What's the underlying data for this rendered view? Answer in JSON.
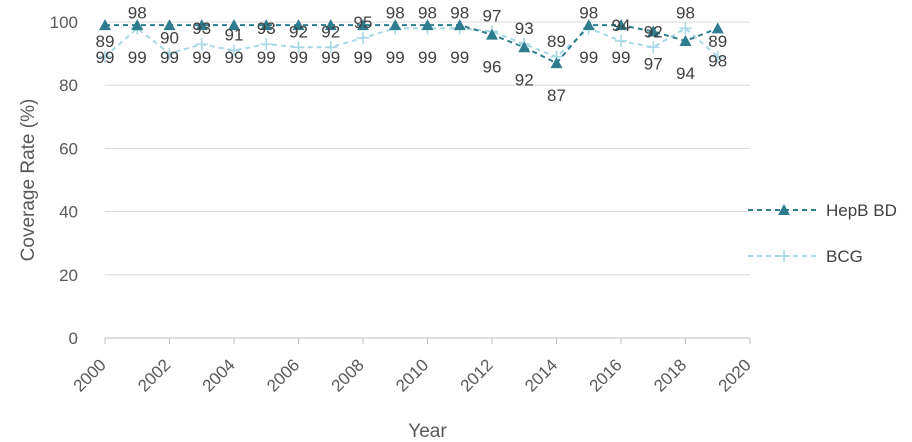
{
  "chart_data": {
    "type": "line",
    "title": "",
    "xlabel": "Year",
    "ylabel": "Coverage Rate (%)",
    "xlim": [
      2000,
      2020
    ],
    "ylim": [
      0,
      100
    ],
    "x_ticks": [
      "2000",
      "2002",
      "2004",
      "2006",
      "2008",
      "2010",
      "2012",
      "2014",
      "2016",
      "2018",
      "2020"
    ],
    "y_ticks": [
      "0",
      "20",
      "40",
      "60",
      "80",
      "100"
    ],
    "grid": "horizontal",
    "legend_position": "right",
    "x": [
      2000,
      2001,
      2002,
      2003,
      2004,
      2005,
      2006,
      2007,
      2008,
      2009,
      2010,
      2011,
      2012,
      2013,
      2014,
      2015,
      2016,
      2017,
      2018,
      2019
    ],
    "series": [
      {
        "name": "HepB BD",
        "color": "#2e7d8f",
        "line_style": "dashed",
        "marker": "triangle",
        "values": [
          99,
          99,
          99,
          99,
          99,
          99,
          99,
          99,
          99,
          99,
          99,
          99,
          96,
          92,
          87,
          99,
          99,
          97,
          94,
          98
        ],
        "labels": [
          "99",
          "99",
          "99",
          "99",
          "99",
          "99",
          "99",
          "99",
          "99",
          "99",
          "99",
          "99",
          "96",
          "92",
          "87",
          "99",
          "99",
          "97",
          "94",
          "98"
        ]
      },
      {
        "name": "BCG",
        "color": "#a8d8e6",
        "line_style": "dashed",
        "marker": "plus",
        "values": [
          89,
          98,
          90,
          93,
          91,
          93,
          92,
          92,
          95,
          98,
          98,
          98,
          97,
          93,
          89,
          98,
          94,
          92,
          98,
          89
        ],
        "labels": [
          "89",
          "98",
          "90",
          "93",
          "91",
          "93",
          "92",
          "92",
          "95",
          "98",
          "98",
          "98",
          "97",
          "93",
          "89",
          "98",
          "94",
          "92",
          "98",
          "89"
        ]
      }
    ]
  }
}
